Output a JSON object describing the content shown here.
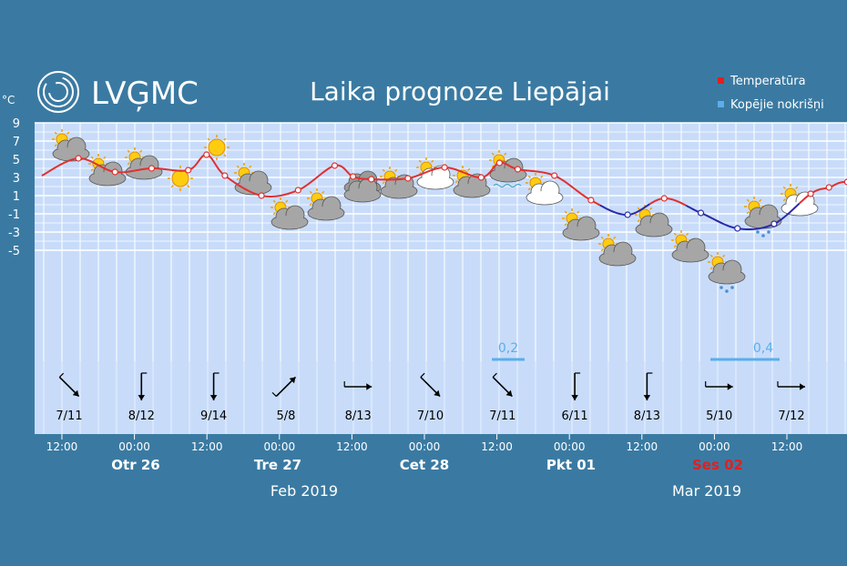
{
  "header": {
    "logo_text": "LVĢMC",
    "title": "Laika prognoze Liepājai",
    "unit_label": "°C"
  },
  "legend": [
    {
      "label": "Temperatūra",
      "color": "#e02020"
    },
    {
      "label": "Kopējie nokrišņi",
      "color": "#5aaeea"
    }
  ],
  "colors": {
    "background": "#3a7aa2",
    "plot_bg": "#c8dcfa",
    "grid": "#ffffff",
    "temp_above_zero": "#e03030",
    "temp_below_zero": "#2a2aa8",
    "precip": "#5aaeea",
    "highlight_day": "#e02020"
  },
  "chart_data": {
    "type": "line",
    "title": "Laika prognoze Liepājai",
    "ylabel": "°C",
    "ylim": [
      -5,
      9
    ],
    "yticks": [
      "9",
      "7",
      "5",
      "3",
      "1",
      "-1",
      "-3",
      "-5"
    ],
    "grid": true,
    "legend_position": "top-right",
    "x_unit": "hours from Feb 25 12:00",
    "series": [
      {
        "name": "Temperatūra",
        "x": [
          -6,
          6,
          18,
          30,
          42,
          48,
          54,
          66,
          78,
          90,
          96,
          102,
          114,
          126,
          138,
          144,
          150,
          162,
          174,
          186,
          198,
          210,
          222,
          234,
          246,
          252,
          258,
          270
        ],
        "values": [
          3.2,
          5.1,
          3.6,
          4.0,
          3.8,
          5.5,
          3.2,
          1.0,
          1.6,
          4.3,
          3.1,
          2.8,
          2.9,
          4.1,
          3.0,
          4.6,
          3.9,
          3.2,
          0.5,
          -1.1,
          0.7,
          -0.9,
          -2.6,
          -2.1,
          1.2,
          1.9,
          2.5,
          1.5
        ]
      },
      {
        "name": "Kopējie nokrišņi",
        "values": [
          0.2,
          0.4
        ]
      }
    ],
    "precip_labels": [
      "0,2",
      "0,4"
    ],
    "wind": [
      {
        "value": "7/11",
        "dir": "nw"
      },
      {
        "value": "8/12",
        "dir": "s"
      },
      {
        "value": "9/14",
        "dir": "s"
      },
      {
        "value": "5/8",
        "dir": "ne"
      },
      {
        "value": "8/13",
        "dir": "e"
      },
      {
        "value": "7/10",
        "dir": "nw"
      },
      {
        "value": "7/11",
        "dir": "nw"
      },
      {
        "value": "6/11",
        "dir": "s"
      },
      {
        "value": "8/13",
        "dir": "s"
      },
      {
        "value": "5/10",
        "dir": "e"
      },
      {
        "value": "7/12",
        "dir": "e"
      }
    ],
    "weather_icons": [
      "cloudy-sun",
      "cloudy-sun",
      "cloudy-sun",
      "sun",
      "sun",
      "cloudy-sun",
      "cloudy-sun",
      "cloudy-sun",
      "overcast",
      "cloudy-sun",
      "partly-cloudy",
      "cloudy-sun",
      "cloudy-fog",
      "partly-cloudy",
      "cloudy-sun",
      "cloudy-sun",
      "cloudy-sun",
      "cloudy-sun",
      "cloudy-snow",
      "cloudy-snow",
      "partly-cloudy"
    ],
    "time_labels": [
      "12:00",
      "00:00",
      "12:00",
      "00:00",
      "12:00",
      "00:00",
      "12:00",
      "00:00",
      "12:00",
      "00:00",
      "12:00"
    ],
    "day_labels": [
      "Otr 26",
      "Tre 27",
      "Cet 28",
      "Pkt 01",
      "Ses 02"
    ],
    "months": [
      "Feb 2019",
      "Mar 2019"
    ]
  }
}
